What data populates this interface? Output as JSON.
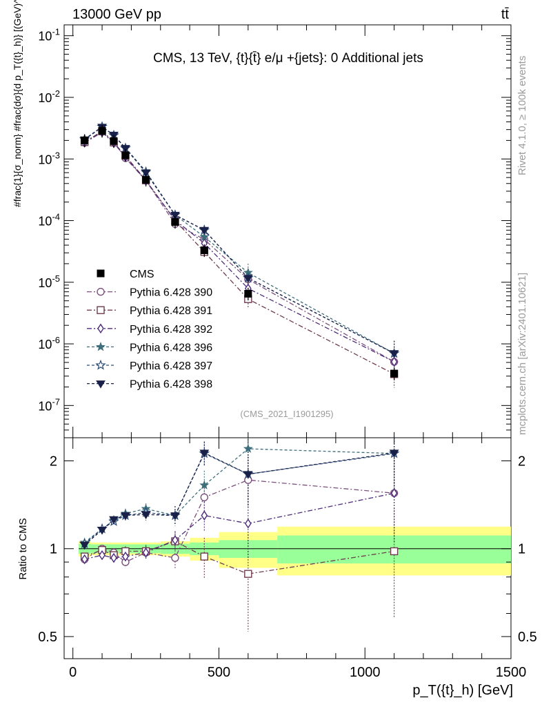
{
  "header": {
    "left": "13000 GeV pp",
    "right": "tt̄"
  },
  "side": {
    "rivet": "Rivet 4.1.0, ≥ 100k events",
    "mcplots": "mcplots.cern.ch [arXiv:2401.10621]"
  },
  "watermark": "(CMS_2021_I1901295)",
  "axes": {
    "ylabel_top": "#frac{1}{σ_norm} #frac{dσ}{d p_T({t}_h)} [(GeV)^-1]",
    "ylabel_bottom": "Ratio to CMS",
    "xlabel": "p_T({t}_h) [GeV]"
  },
  "chart_data": {
    "type": "line",
    "title": "CMS, 13 TeV, {t}{t̄} e/μ +{jets}: 0 Additional jets",
    "x": [
      40,
      100,
      140,
      180,
      250,
      350,
      450,
      600,
      1100
    ],
    "xlim": [
      -30,
      1500
    ],
    "xticks": [
      0,
      500,
      1000,
      1500
    ],
    "top": {
      "yscale": "log",
      "ylim": [
        3e-08,
        0.15
      ],
      "yticks": [
        {
          "v": 1e-07,
          "label": "10^-7"
        },
        {
          "v": 1e-06,
          "label": "10^-6"
        },
        {
          "v": 1e-05,
          "label": "10^-5"
        },
        {
          "v": 0.0001,
          "label": "10^-4"
        },
        {
          "v": 0.001,
          "label": "10^-3"
        },
        {
          "v": 0.01,
          "label": "10^-2"
        },
        {
          "v": 0.1,
          "label": "10^-1"
        }
      ]
    },
    "bottom": {
      "yscale": "log",
      "ylim": [
        0.42,
        2.4
      ],
      "yticks": [
        {
          "v": 0.5,
          "label": "0.5"
        },
        {
          "v": 1,
          "label": "1"
        },
        {
          "v": 2,
          "label": "2"
        }
      ]
    },
    "reference": {
      "name": "CMS",
      "values": [
        0.002,
        0.00285,
        0.00195,
        0.00115,
        0.00046,
        9.5e-05,
        3.3e-05,
        6.5e-06,
        3.3e-07
      ],
      "band_edges": [
        20,
        60,
        120,
        160,
        200,
        300,
        400,
        500,
        700,
        1500
      ],
      "band_inner": [
        0.04,
        0.035,
        0.035,
        0.035,
        0.035,
        0.04,
        0.05,
        0.07,
        0.11
      ],
      "band_outer": [
        0.06,
        0.05,
        0.05,
        0.05,
        0.05,
        0.06,
        0.09,
        0.14,
        0.19
      ]
    },
    "series": [
      {
        "name": "Pythia 6.428 390",
        "color": "#7b4f7b",
        "marker": "circle-open",
        "dash": "7,3,2,3",
        "ratio": [
          0.92,
          1.0,
          0.97,
          0.9,
          0.97,
          0.93,
          1.5,
          1.72,
          1.55
        ],
        "err": [
          0.02,
          0.02,
          0.03,
          0.04,
          0.05,
          0.08,
          0.15,
          0.35,
          0.5
        ]
      },
      {
        "name": "Pythia 6.428 391",
        "color": "#6e3a4e",
        "marker": "square-open",
        "dash": "7,3,2,3",
        "ratio": [
          0.94,
          0.99,
          0.95,
          0.98,
          0.98,
          1.06,
          0.94,
          0.82,
          0.98
        ],
        "err": [
          0.02,
          0.02,
          0.03,
          0.04,
          0.05,
          0.08,
          0.15,
          0.3,
          0.4
        ]
      },
      {
        "name": "Pythia 6.428 392",
        "color": "#4c2a7a",
        "marker": "diamond-open",
        "dash": "7,3,2,3",
        "ratio": [
          0.92,
          0.95,
          0.93,
          0.94,
          0.97,
          1.07,
          1.3,
          1.22,
          1.55
        ],
        "err": [
          0.02,
          0.02,
          0.03,
          0.04,
          0.05,
          0.08,
          0.15,
          0.3,
          0.5
        ]
      },
      {
        "name": "Pythia 6.428 396",
        "color": "#3d6e7a",
        "marker": "star-filled",
        "dash": "4,3",
        "ratio": [
          1.05,
          1.17,
          1.25,
          1.32,
          1.37,
          1.3,
          1.65,
          2.2,
          2.12
        ],
        "err": [
          0.03,
          0.03,
          0.04,
          0.05,
          0.06,
          0.1,
          0.2,
          0.4,
          0.6
        ]
      },
      {
        "name": "Pythia 6.428 397",
        "color": "#2b4a78",
        "marker": "star-open",
        "dash": "4,3",
        "ratio": [
          1.04,
          1.17,
          1.24,
          1.3,
          1.33,
          1.3,
          2.12,
          1.8,
          2.12
        ],
        "err": [
          0.03,
          0.03,
          0.04,
          0.05,
          0.06,
          0.1,
          0.2,
          0.4,
          0.6
        ]
      },
      {
        "name": "Pythia 6.428 398",
        "color": "#1a2148",
        "marker": "triangle-down-filled",
        "dash": "4,3",
        "ratio": [
          1.03,
          1.16,
          1.26,
          1.3,
          1.31,
          1.3,
          2.13,
          1.8,
          2.13
        ],
        "err": [
          0.03,
          0.03,
          0.04,
          0.05,
          0.06,
          0.1,
          0.2,
          0.4,
          0.6
        ]
      }
    ]
  }
}
